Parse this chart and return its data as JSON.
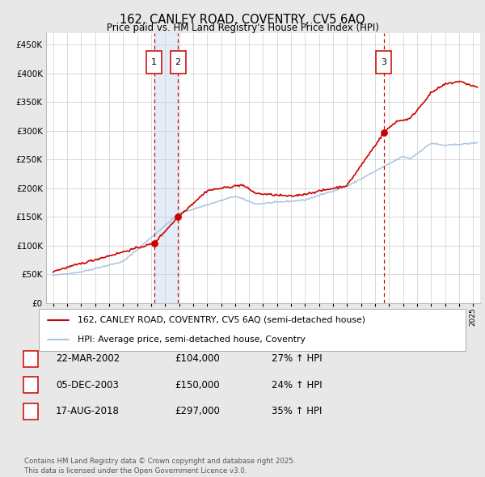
{
  "title1": "162, CANLEY ROAD, COVENTRY, CV5 6AQ",
  "title2": "Price paid vs. HM Land Registry's House Price Index (HPI)",
  "ytick_values": [
    0,
    50000,
    100000,
    150000,
    200000,
    250000,
    300000,
    350000,
    400000,
    450000
  ],
  "xlim_min": 1994.5,
  "xlim_max": 2025.5,
  "ylim_min": 0,
  "ylim_max": 470000,
  "bg_color": "#e8e8e8",
  "plot_bg": "#ffffff",
  "grid_color": "#cccccc",
  "red_color": "#cc0000",
  "blue_color": "#aac4e0",
  "span_color": "#dce8f5",
  "purchase_years": [
    2002.22,
    2003.92,
    2018.62
  ],
  "purchase_prices": [
    104000,
    150000,
    297000
  ],
  "purchase_labels": [
    "1",
    "2",
    "3"
  ],
  "legend1": "162, CANLEY ROAD, COVENTRY, CV5 6AQ (semi-detached house)",
  "legend2": "HPI: Average price, semi-detached house, Coventry",
  "table_rows": [
    {
      "num": "1",
      "date": "22-MAR-2002",
      "price": "£104,000",
      "pct": "27% ↑ HPI"
    },
    {
      "num": "2",
      "date": "05-DEC-2003",
      "price": "£150,000",
      "pct": "24% ↑ HPI"
    },
    {
      "num": "3",
      "date": "17-AUG-2018",
      "price": "£297,000",
      "pct": "35% ↑ HPI"
    }
  ],
  "footnote": "Contains HM Land Registry data © Crown copyright and database right 2025.\nThis data is licensed under the Open Government Licence v3.0.",
  "xtick_years": [
    1995,
    1996,
    1997,
    1998,
    1999,
    2000,
    2001,
    2002,
    2003,
    2004,
    2005,
    2006,
    2007,
    2008,
    2009,
    2010,
    2011,
    2012,
    2013,
    2014,
    2015,
    2016,
    2017,
    2018,
    2019,
    2020,
    2021,
    2022,
    2023,
    2024,
    2025
  ]
}
